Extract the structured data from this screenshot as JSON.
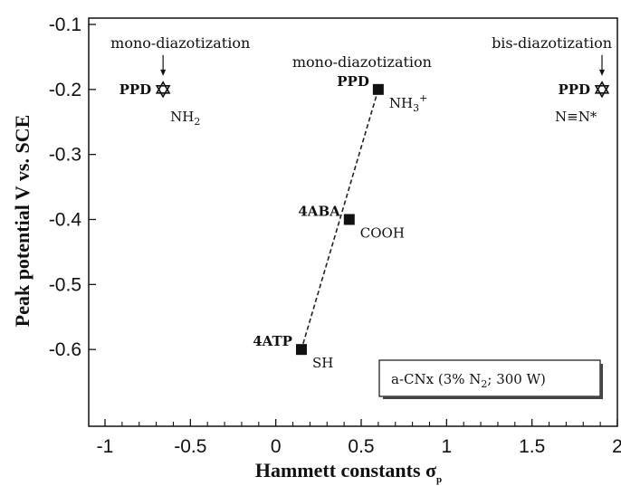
{
  "chart_data": {
    "type": "scatter",
    "title": "",
    "xlabel": "Hammett constants σ",
    "xlabel_subscript": "p",
    "ylabel": "Peak potential V vs. SCE",
    "xlim": [
      -1,
      2
    ],
    "ylim": [
      -0.7,
      -0.1
    ],
    "y_inverted": true,
    "x_ticks": [
      "-1",
      "-0.5",
      "0",
      "0.5",
      "1",
      "1.5",
      "2"
    ],
    "y_ticks": [
      "-0.1",
      "-0.2",
      "-0.3",
      "-0.4",
      "-0.5",
      "-0.6"
    ],
    "grid": false,
    "series": [
      {
        "marker": "square",
        "fitted_line": true,
        "points": [
          {
            "x": 0.6,
            "y": -0.2,
            "compound": "PPD",
            "group": "NH",
            "group_sub": "3",
            "group_sup": "+"
          },
          {
            "x": 0.43,
            "y": -0.4,
            "compound": "4ABA",
            "group": "COOH",
            "group_sub": "",
            "group_sup": ""
          },
          {
            "x": 0.15,
            "y": -0.6,
            "compound": "4ATP",
            "group": "SH",
            "group_sub": "",
            "group_sup": ""
          }
        ]
      },
      {
        "marker": "star",
        "fitted_line": false,
        "points": [
          {
            "x": -0.66,
            "y": -0.2,
            "compound": "PPD",
            "group": "NH",
            "group_sub": "2",
            "group_sup": ""
          },
          {
            "x": 1.91,
            "y": -0.2,
            "compound": "PPD",
            "group": "N≡N*",
            "group_sub": "",
            "group_sup": ""
          }
        ]
      }
    ],
    "annotations": [
      {
        "text": "mono-diazotization",
        "target": "star-left",
        "arrow": true
      },
      {
        "text": "mono-diazotization",
        "target": "square-top",
        "arrow": false
      },
      {
        "text": "bis-diazotization",
        "target": "star-right",
        "arrow": true
      }
    ],
    "legend": {
      "text": "a-CNx (3% N",
      "sub": "2",
      "text_after": "; 300 W)",
      "placement": "bottom-right"
    },
    "colors": {
      "marker": "#111111",
      "line": "#222222",
      "background": "#ffffff"
    }
  }
}
